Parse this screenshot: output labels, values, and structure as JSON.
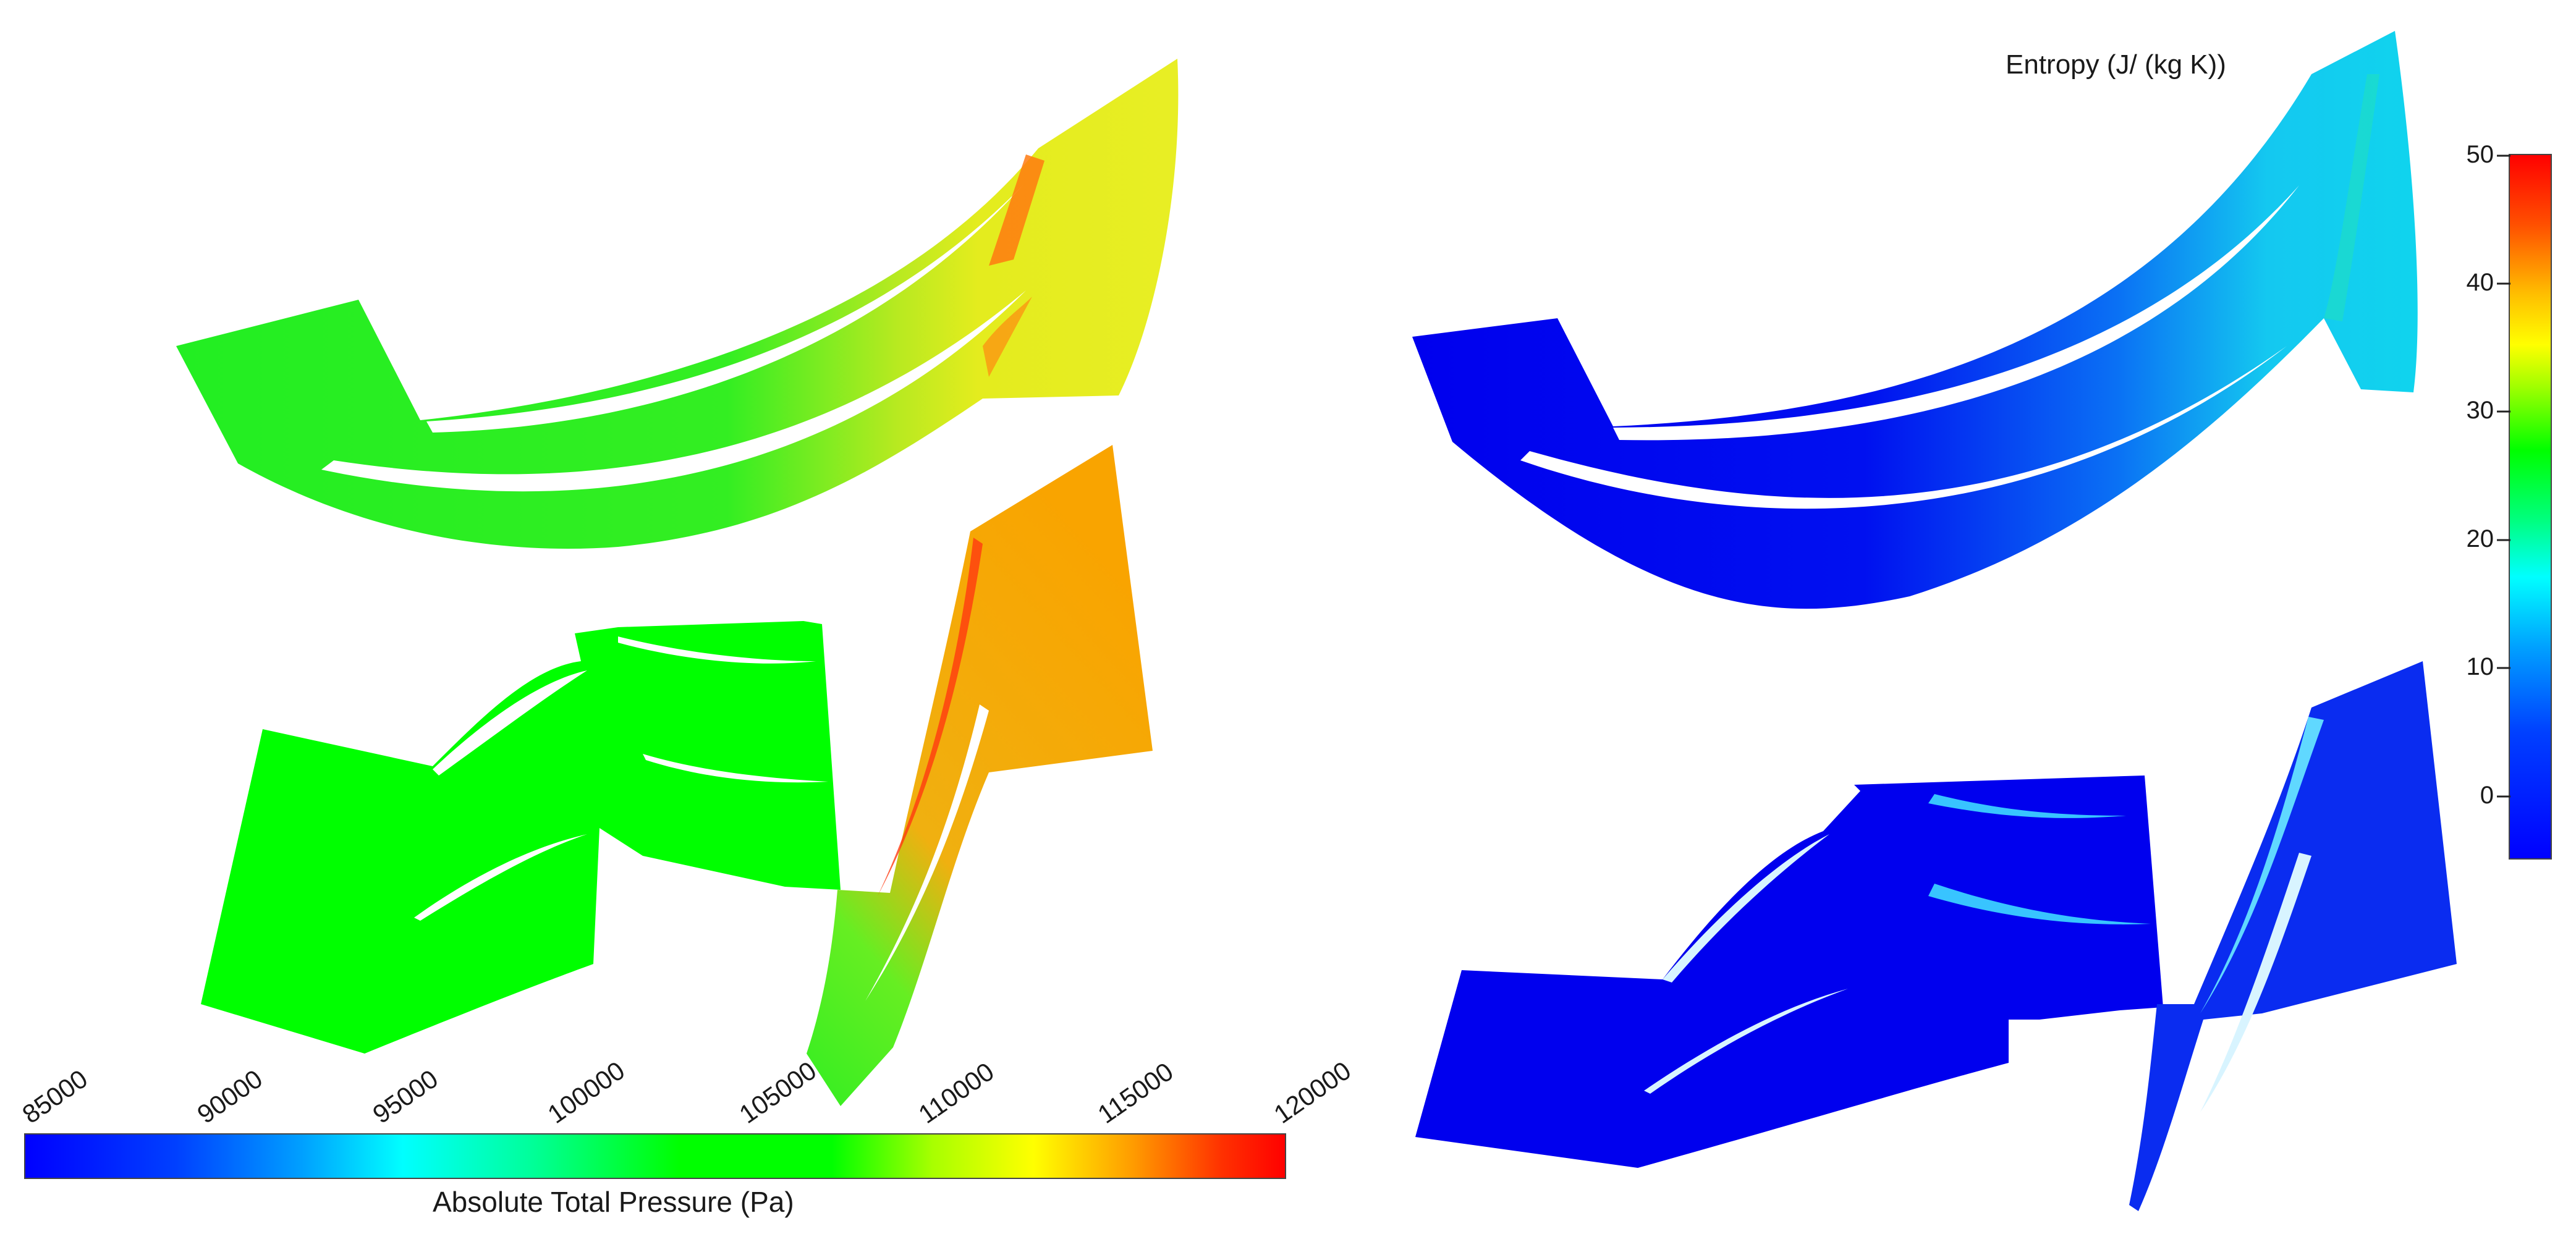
{
  "pressure_panel": {
    "colorbar_title": "Absolute Total Pressure (Pa)",
    "ticks": [
      "85000",
      "90000",
      "95000",
      "100000",
      "105000",
      "110000",
      "115000",
      "120000"
    ],
    "range": [
      85000,
      120000
    ]
  },
  "entropy_panel": {
    "colorbar_title": "Entropy (J/ (kg K))",
    "ticks": [
      "50",
      "40",
      "30",
      "20",
      "10",
      "0"
    ],
    "range": [
      -5,
      50
    ]
  },
  "colors": {
    "blue": "#0000ff",
    "green": "#00ff00",
    "yellow": "#e8ee20",
    "orange": "#ffa200",
    "red": "#ff0000",
    "cyan": "#00e8ff"
  }
}
